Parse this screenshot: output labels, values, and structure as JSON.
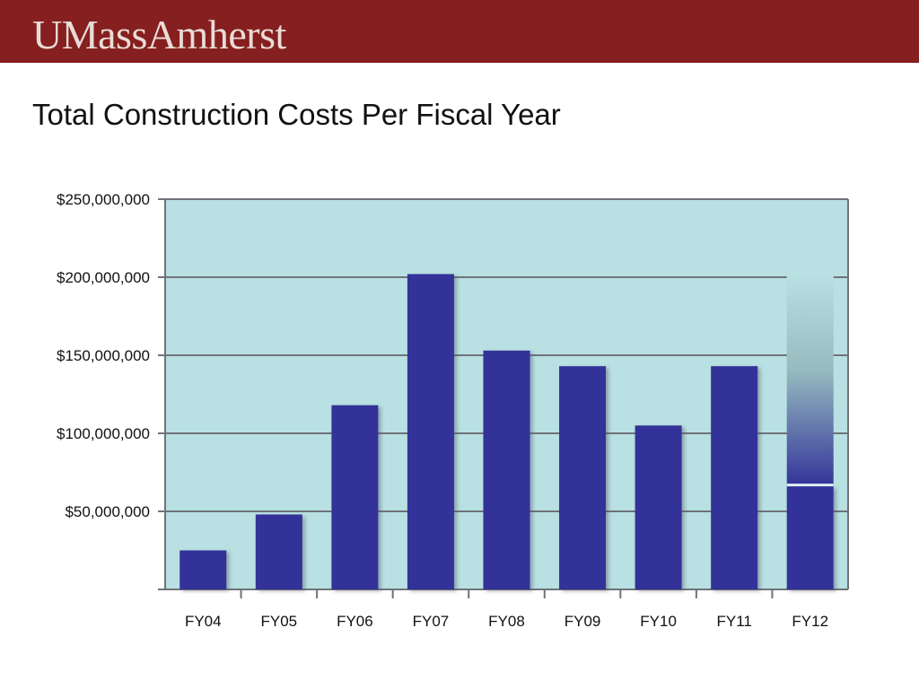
{
  "header": {
    "logo_text": "UMassAmherst",
    "brand_color": "#861f1f"
  },
  "page": {
    "title": "Total Construction Costs Per Fiscal Year"
  },
  "chart_data": {
    "type": "bar",
    "title": "Total Construction Costs Per Fiscal Year",
    "xlabel": "",
    "ylabel": "",
    "categories": [
      "FY04",
      "FY05",
      "FY06",
      "FY07",
      "FY08",
      "FY09",
      "FY10",
      "FY11",
      "FY12"
    ],
    "series": [
      {
        "values": [
          25000000,
          48000000,
          118000000,
          202000000,
          153000000,
          143000000,
          105000000,
          143000000,
          66000000
        ]
      }
    ],
    "fy12_gradient_top": 202000000,
    "ylim": [
      0,
      250000000
    ],
    "yticks": [
      50000000,
      100000000,
      150000000,
      200000000,
      250000000
    ],
    "ytick_labels": [
      "$50,000,000",
      "$100,000,000",
      "$150,000,000",
      "$200,000,000",
      "$250,000,000"
    ],
    "grid": true,
    "legend": "none",
    "colors": {
      "bar": "#333399",
      "plot_background": "#b9e0e3",
      "gridline": "#6f7379",
      "gradient_top": "#b9e0e3",
      "gradient_mid": "#97bcc0",
      "gradient_bottom": "#333399"
    }
  }
}
